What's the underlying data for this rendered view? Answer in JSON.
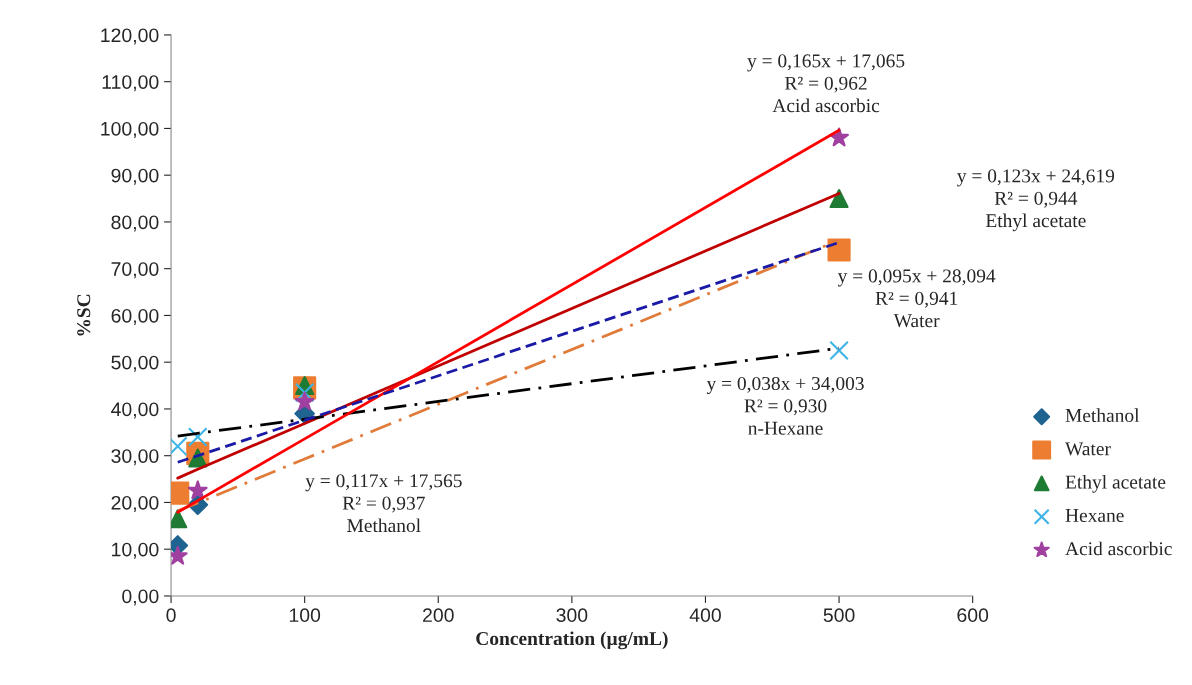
{
  "chart_data": {
    "type": "scatter",
    "xlabel": "Concentration (µg/mL)",
    "ylabel": "%SC",
    "xlim": [
      0,
      600
    ],
    "xticks": [
      0,
      100,
      200,
      300,
      400,
      500,
      600
    ],
    "ylim": [
      0,
      120
    ],
    "yticks": [
      {
        "value": 0,
        "label": "0,00"
      },
      {
        "value": 10,
        "label": "10,00"
      },
      {
        "value": 20,
        "label": "20,00"
      },
      {
        "value": 30,
        "label": "30,00"
      },
      {
        "value": 40,
        "label": "40,00"
      },
      {
        "value": 50,
        "label": "50,00"
      },
      {
        "value": 60,
        "label": "60,00"
      },
      {
        "value": 70,
        "label": "70,00"
      },
      {
        "value": 80,
        "label": "80,00"
      },
      {
        "value": 90,
        "label": "90,00"
      },
      {
        "value": 100,
        "label": "100,00"
      },
      {
        "value": 110,
        "label": "110,00"
      },
      {
        "value": 120,
        "label": "120,00"
      }
    ],
    "grid": false,
    "legend": "right",
    "x": [
      5,
      20,
      100,
      500
    ],
    "series": [
      {
        "name": "Methanol",
        "color": "#1f6391",
        "marker": "diamond",
        "values": [
          10.8,
          19.5,
          39,
          null
        ]
      },
      {
        "name": "Water",
        "color": "#ed7d31",
        "marker": "square",
        "values": [
          22,
          30.5,
          44.5,
          74
        ]
      },
      {
        "name": "Ethyl acetate",
        "color": "#1e7b34",
        "marker": "triangle",
        "values": [
          16.5,
          29.5,
          45,
          85
        ]
      },
      {
        "name": "Hexane",
        "color": "#3cb4e6",
        "marker": "cross",
        "values": [
          32,
          34,
          43.5,
          52.5
        ]
      },
      {
        "name": "Acid ascorbic",
        "color": "#a040a0",
        "marker": "star",
        "values": [
          8.5,
          22.5,
          41.5,
          98
        ]
      },
      {
        "type": "line",
        "color": "#e07b39",
        "line_style": "dashdot",
        "values": [
          18.2,
          19.9,
          29.3,
          76.1
        ]
      },
      {
        "type": "line",
        "color": "#1a1aa6",
        "line_style": "dashed",
        "values": [
          28.6,
          30,
          37.6,
          75.6
        ]
      },
      {
        "type": "line",
        "color": "#c00000",
        "line_style": "solid",
        "values": [
          25.2,
          27.1,
          36.9,
          86.1
        ]
      },
      {
        "type": "line",
        "color": "#000000",
        "line_style": "dashdot",
        "values": [
          34.2,
          34.8,
          37.8,
          53
        ]
      },
      {
        "type": "line",
        "color": "#ff0000",
        "line_style": "solid",
        "values": [
          17.9,
          20.4,
          33.6,
          99.6
        ]
      }
    ],
    "annotations": [
      "y = 0,165x + 17,065\nR² = 0,962\nAcid ascorbic",
      "y = 0,123x + 24,619\nR² = 0,944\nEthyl acetate",
      "y = 0,095x + 28,094\nR² = 0,941\nWater",
      "y = 0,038x + 34,003\nR² = 0,930\nn-Hexane",
      "y = 0,117x + 17,565\nR² = 0,937\nMethanol"
    ]
  }
}
